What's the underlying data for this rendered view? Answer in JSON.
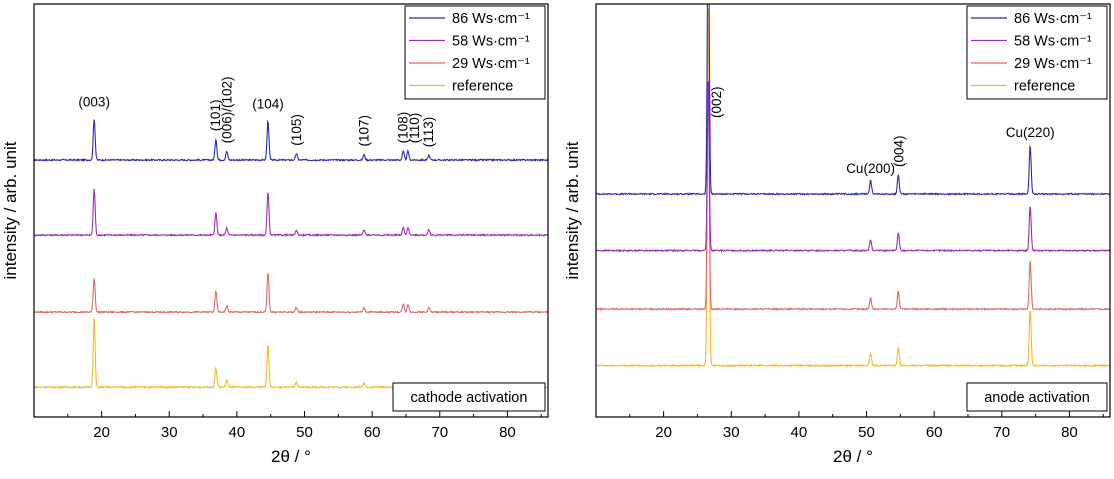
{
  "chart_data": [
    {
      "type": "line",
      "xlabel": "2θ / °",
      "ylabel": "intensity / arb. unit",
      "xlim": [
        10,
        86
      ],
      "x_ticks": [
        20,
        30,
        40,
        50,
        60,
        70,
        80
      ],
      "y_ticks": [],
      "grid": false,
      "legend_position": "top-right",
      "box_label": "cathode activation",
      "series": [
        {
          "name": "86 Ws·cm⁻¹",
          "color": "#2b2bb0",
          "baseline": 0.0,
          "peaks": [
            [
              18.9,
              10.5
            ],
            [
              36.9,
              5.3
            ],
            [
              38.5,
              2.2
            ],
            [
              44.6,
              10.0
            ],
            [
              48.8,
              1.6
            ],
            [
              58.8,
              1.4
            ],
            [
              64.6,
              2.2
            ],
            [
              65.3,
              2.2
            ],
            [
              68.4,
              1.2
            ]
          ]
        },
        {
          "name": "58 Ws·cm⁻¹",
          "color": "#9b2fb5",
          "baseline": -19.0,
          "peaks": [
            [
              18.9,
              11.8
            ],
            [
              36.9,
              5.7
            ],
            [
              38.5,
              1.8
            ],
            [
              44.6,
              10.8
            ],
            [
              48.8,
              1.3
            ],
            [
              58.8,
              1.3
            ],
            [
              64.6,
              1.9
            ],
            [
              65.3,
              2.0
            ],
            [
              68.4,
              1.4
            ]
          ]
        },
        {
          "name": "29 Ws·cm⁻¹",
          "color": "#e06a6a",
          "baseline": -38.5,
          "peaks": [
            [
              18.9,
              8.7
            ],
            [
              36.9,
              5.3
            ],
            [
              38.5,
              1.6
            ],
            [
              44.6,
              10.0
            ],
            [
              48.8,
              1.2
            ],
            [
              58.8,
              1.2
            ],
            [
              64.6,
              2.0
            ],
            [
              65.3,
              2.0
            ],
            [
              68.4,
              1.2
            ]
          ]
        },
        {
          "name": "reference",
          "color": "#f5b925",
          "baseline": -57.5,
          "peaks": [
            [
              18.9,
              17.5
            ],
            [
              36.9,
              4.9
            ],
            [
              38.5,
              1.8
            ],
            [
              44.6,
              10.8
            ],
            [
              48.8,
              1.2
            ],
            [
              58.8,
              1.0
            ],
            [
              64.6,
              1.0
            ],
            [
              68.4,
              0.8
            ]
          ]
        }
      ],
      "peak_labels": [
        {
          "text": "(003)",
          "x": 18.9,
          "rotated": false
        },
        {
          "text": "(101)",
          "x": 36.9,
          "rotated": true
        },
        {
          "text": "(006)/(102)",
          "x": 38.6,
          "rotated": true
        },
        {
          "text": "(104)",
          "x": 44.6,
          "rotated": false
        },
        {
          "text": "(105)",
          "x": 48.9,
          "rotated": true
        },
        {
          "text": "(107)",
          "x": 58.9,
          "rotated": true
        },
        {
          "text": "(108)",
          "x": 64.6,
          "rotated": true
        },
        {
          "text": "(110)",
          "x": 66.3,
          "rotated": true
        },
        {
          "text": "(113)",
          "x": 68.4,
          "rotated": true
        }
      ]
    },
    {
      "type": "line",
      "xlabel": "2θ / °",
      "ylabel": "intensity / arb. unit",
      "xlim": [
        10,
        86
      ],
      "x_ticks": [
        20,
        30,
        40,
        50,
        60,
        70,
        80
      ],
      "y_ticks": [],
      "grid": false,
      "legend_position": "top-right",
      "box_label": "anode activation",
      "series": [
        {
          "name": "86 Ws·cm⁻¹",
          "color": "#2b2bb0",
          "baseline": 0.0,
          "peaks": [
            [
              26.6,
              75.0
            ],
            [
              50.6,
              3.6
            ],
            [
              54.7,
              5.0
            ],
            [
              74.2,
              12.5
            ]
          ]
        },
        {
          "name": "58 Ws·cm⁻¹",
          "color": "#9b2fb5",
          "baseline": -14.5,
          "peaks": [
            [
              26.6,
              45.0
            ],
            [
              50.6,
              2.9
            ],
            [
              54.7,
              4.5
            ],
            [
              74.2,
              11.5
            ]
          ]
        },
        {
          "name": "29 Ws·cm⁻¹",
          "color": "#e06a6a",
          "baseline": -29.5,
          "peaks": [
            [
              26.6,
              60.0
            ],
            [
              50.6,
              2.9
            ],
            [
              54.7,
              4.5
            ],
            [
              74.2,
              12.5
            ]
          ]
        },
        {
          "name": "reference",
          "color": "#f5b925",
          "baseline": -44.0,
          "peaks": [
            [
              26.6,
              95.0
            ],
            [
              50.6,
              3.2
            ],
            [
              54.7,
              4.8
            ],
            [
              74.2,
              14.5
            ]
          ]
        }
      ],
      "peak_labels": [
        {
          "text": "(002)",
          "x": 27.9,
          "rotated": true
        },
        {
          "text": "Cu(200)",
          "x": 50.6,
          "rotated": false
        },
        {
          "text": "(004)",
          "x": 54.9,
          "rotated": true
        },
        {
          "text": "Cu(220)",
          "x": 74.2,
          "rotated": false
        }
      ]
    }
  ]
}
